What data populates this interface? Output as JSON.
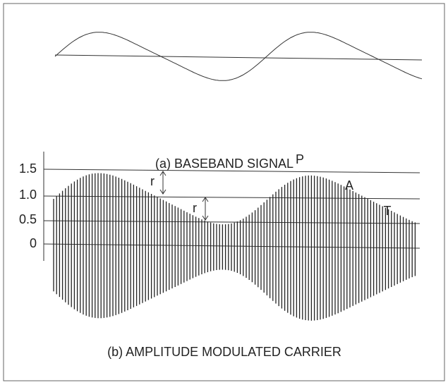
{
  "captions": {
    "baseband": "(a) BASEBAND SIGNAL",
    "carrier": "(b) AMPLITUDE MODULATED CARRIER"
  },
  "levels": [
    "1.5",
    "1.0",
    "0.5",
    "0"
  ],
  "annotations": {
    "peak": "P",
    "average": "A",
    "trough": "T",
    "ripple_1": "r",
    "ripple_2": "r"
  }
}
